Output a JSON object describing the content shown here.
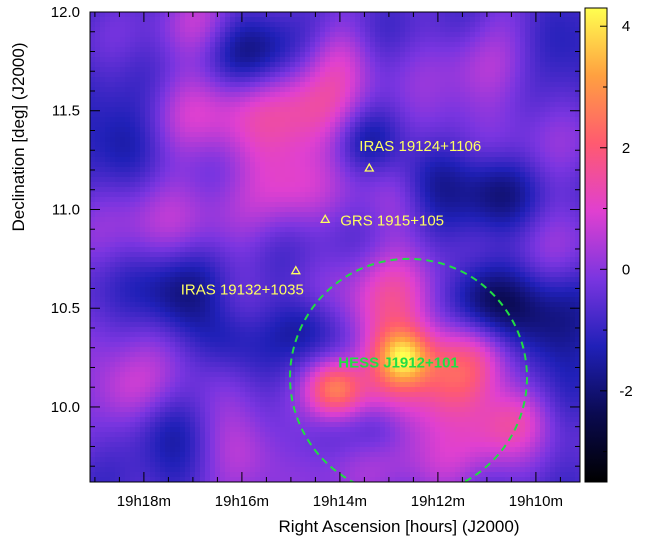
{
  "chart_data": {
    "type": "heatmap",
    "xlabel": "Right Ascension [hours] (J2000)",
    "ylabel": "Declination [deg] (J2000)",
    "x_ticks": [
      "19h18m",
      "19h16m",
      "19h14m",
      "19h12m",
      "19h10m"
    ],
    "x_tick_minutes": [
      18,
      16,
      14,
      12,
      10
    ],
    "xlim_minutes": [
      19.1,
      9.1
    ],
    "y_ticks": [
      "10.0",
      "10.5",
      "11.0",
      "11.5",
      "12.0"
    ],
    "y_tick_values": [
      10.0,
      10.5,
      11.0,
      11.5,
      12.0
    ],
    "ylim": [
      9.62,
      12.0
    ],
    "colorbar": {
      "ticks": [
        "4",
        "2",
        "0",
        "-2"
      ],
      "tick_values": [
        4,
        2,
        0,
        -2
      ],
      "range": [
        -3.5,
        4.3
      ],
      "colors": [
        "#000000",
        "#0a0a50",
        "#2020b8",
        "#7a35e0",
        "#e040d0",
        "#ff5a70",
        "#ffa040",
        "#ffff50"
      ]
    },
    "sources": [
      {
        "label": "IRAS 19124+1106",
        "ra_min": 13.4,
        "dec": 11.21,
        "color": "#ffff60"
      },
      {
        "label": "GRS 1915+105",
        "ra_min": 14.3,
        "dec": 10.95,
        "color": "#ffff60"
      },
      {
        "label": "IRAS 19132+1035",
        "ra_min": 14.9,
        "dec": 10.69,
        "color": "#ffff60"
      }
    ],
    "hess_region": {
      "label": "HESS J1912+101",
      "ra_min": 12.6,
      "dec": 10.15,
      "radius_deg": 0.6,
      "color": "#22dd44"
    },
    "blobs": [
      {
        "ra": 12.7,
        "dec": 10.25,
        "a": 3.0,
        "s": 0.1
      },
      {
        "ra": 14.1,
        "dec": 10.09,
        "a": 2.8,
        "s": 0.1
      },
      {
        "ra": 12.9,
        "dec": 10.5,
        "a": 2.0,
        "s": 0.2
      },
      {
        "ra": 12.6,
        "dec": 10.0,
        "a": 1.6,
        "s": 0.22
      },
      {
        "ra": 11.5,
        "dec": 10.15,
        "a": 1.5,
        "s": 0.15
      },
      {
        "ra": 11.0,
        "dec": 10.3,
        "a": 1.0,
        "s": 0.14
      },
      {
        "ra": 10.4,
        "dec": 9.95,
        "a": 1.4,
        "s": 0.12
      },
      {
        "ra": 10.9,
        "dec": 9.85,
        "a": 1.0,
        "s": 0.13
      },
      {
        "ra": 18.4,
        "dec": 10.1,
        "a": 1.5,
        "s": 0.15
      },
      {
        "ra": 17.2,
        "dec": 10.2,
        "a": 0.8,
        "s": 0.18
      },
      {
        "ra": 15.9,
        "dec": 9.75,
        "a": 1.3,
        "s": 0.15
      },
      {
        "ra": 15.2,
        "dec": 11.4,
        "a": 1.5,
        "s": 0.2
      },
      {
        "ra": 14.3,
        "dec": 11.55,
        "a": 1.2,
        "s": 0.18
      },
      {
        "ra": 16.8,
        "dec": 11.5,
        "a": 1.2,
        "s": 0.18
      },
      {
        "ra": 15.0,
        "dec": 11.1,
        "a": 1.0,
        "s": 0.15
      },
      {
        "ra": 14.0,
        "dec": 11.8,
        "a": 0.8,
        "s": 0.12
      },
      {
        "ra": 12.9,
        "dec": 11.05,
        "a": 0.9,
        "s": 0.15
      },
      {
        "ra": 12.0,
        "dec": 11.45,
        "a": 0.6,
        "s": 0.15
      },
      {
        "ra": 11.2,
        "dec": 11.7,
        "a": 0.7,
        "s": 0.18
      },
      {
        "ra": 10.0,
        "dec": 11.4,
        "a": 0.5,
        "s": 0.2
      },
      {
        "ra": 9.6,
        "dec": 10.8,
        "a": 0.5,
        "s": 0.2
      },
      {
        "ra": 18.1,
        "dec": 11.0,
        "a": 0.8,
        "s": 0.2
      },
      {
        "ra": 16.6,
        "dec": 10.9,
        "a": 0.6,
        "s": 0.2
      },
      {
        "ra": 16.8,
        "dec": 11.95,
        "a": 1.0,
        "s": 0.15
      },
      {
        "ra": 10.2,
        "dec": 12.0,
        "a": 0.5,
        "s": 0.15
      },
      {
        "ra": 12.0,
        "dec": 9.7,
        "a": 0.5,
        "s": 0.15
      },
      {
        "ra": 14.0,
        "dec": 9.68,
        "a": 0.6,
        "s": 0.13
      },
      {
        "ra": 17.3,
        "dec": 10.55,
        "a": -1.5,
        "s": 0.16
      },
      {
        "ra": 15.8,
        "dec": 11.8,
        "a": -1.5,
        "s": 0.15
      },
      {
        "ra": 13.5,
        "dec": 11.35,
        "a": -1.0,
        "s": 0.12
      },
      {
        "ra": 11.1,
        "dec": 10.55,
        "a": -1.6,
        "s": 0.15
      },
      {
        "ra": 9.8,
        "dec": 10.4,
        "a": -1.5,
        "s": 0.18
      },
      {
        "ra": 12.2,
        "dec": 11.15,
        "a": -1.3,
        "s": 0.14
      },
      {
        "ra": 17.6,
        "dec": 9.9,
        "a": -1.2,
        "s": 0.14
      },
      {
        "ra": 14.7,
        "dec": 10.4,
        "a": -1.0,
        "s": 0.12
      },
      {
        "ra": 18.6,
        "dec": 11.35,
        "a": -1.2,
        "s": 0.16
      },
      {
        "ra": 10.8,
        "dec": 11.1,
        "a": -1.4,
        "s": 0.14
      },
      {
        "ra": 9.4,
        "dec": 11.85,
        "a": -1.0,
        "s": 0.15
      },
      {
        "ra": 13.2,
        "dec": 9.9,
        "a": -0.9,
        "s": 0.1
      },
      {
        "ra": 16.3,
        "dec": 10.35,
        "a": -0.8,
        "s": 0.12
      }
    ]
  }
}
